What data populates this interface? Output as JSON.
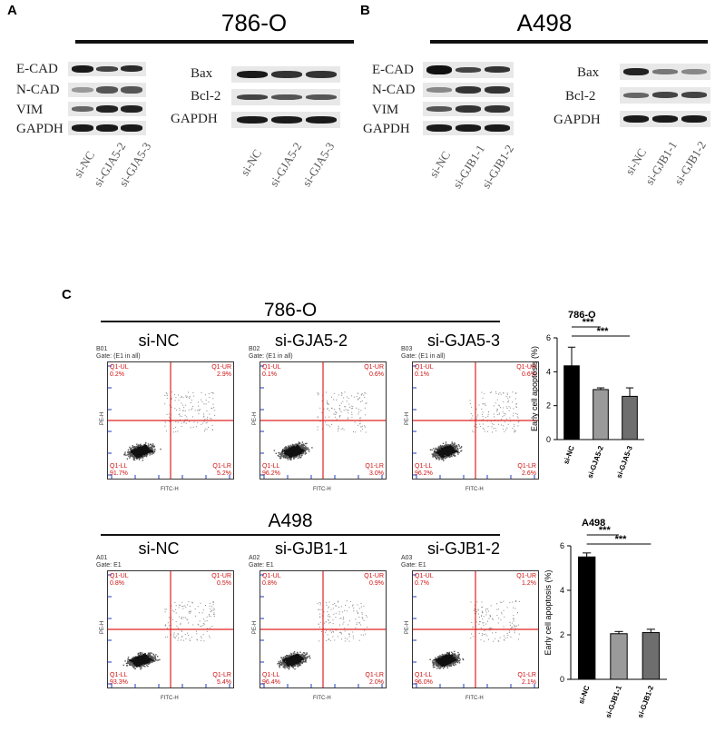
{
  "panels": {
    "A": {
      "letter": "A",
      "title": "786-O",
      "blot1": {
        "rows": [
          "E-CAD",
          "N-CAD",
          "VIM",
          "GAPDH"
        ],
        "lanes": [
          "si-NC",
          "si-GJA5-2",
          "si-GJA5-3"
        ]
      },
      "blot2": {
        "rows": [
          "Bax",
          "Bcl-2",
          "GAPDH"
        ],
        "lanes": [
          "si-NC",
          "si-GJA5-2",
          "si-GJA5-3"
        ]
      }
    },
    "B": {
      "letter": "B",
      "title": "A498",
      "blot1": {
        "rows": [
          "E-CAD",
          "N-CAD",
          "VIM",
          "GAPDH"
        ],
        "lanes": [
          "si-NC",
          "si-GJB1-1",
          "si-GJB1-2"
        ]
      },
      "blot2": {
        "rows": [
          "Bax",
          "Bcl-2",
          "GAPDH"
        ],
        "lanes": [
          "si-NC",
          "si-GJB1-1",
          "si-GJB1-2"
        ]
      }
    },
    "C": {
      "letter": "C",
      "row1": {
        "title": "786-O",
        "plots": [
          {
            "heading": "si-NC",
            "sample": "B01",
            "gate": "Gate: (E1 in all)",
            "UL": "Q1-UL",
            "UL_pct": "0.2%",
            "UR": "Q1-UR",
            "UR_pct": "2.9%",
            "LL": "Q1-LL",
            "LL_pct": "91.7%",
            "LR": "Q1-LR",
            "LR_pct": "5.2%"
          },
          {
            "heading": "si-GJA5-2",
            "sample": "B02",
            "gate": "Gate: (E1 in all)",
            "UL": "Q1-UL",
            "UL_pct": "0.1%",
            "UR": "Q1-UR",
            "UR_pct": "0.6%",
            "LL": "Q1-LL",
            "LL_pct": "96.2%",
            "LR": "Q1-LR",
            "LR_pct": "3.0%"
          },
          {
            "heading": "si-GJA5-3",
            "sample": "B03",
            "gate": "Gate: (E1 in all)",
            "UL": "Q1-UL",
            "UL_pct": "0.1%",
            "UR": "Q1-UR",
            "UR_pct": "0.6%",
            "LL": "Q1-LL",
            "LL_pct": "96.2%",
            "LR": "Q1-LR",
            "LR_pct": "2.6%"
          }
        ]
      },
      "row2": {
        "title": "A498",
        "plots": [
          {
            "heading": "si-NC",
            "sample": "A01",
            "gate": "Gate: E1",
            "UL": "Q1-UL",
            "UL_pct": "0.8%",
            "UR": "Q1-UR",
            "UR_pct": "0.5%",
            "LL": "Q1-LL",
            "LL_pct": "93.3%",
            "LR": "Q1-LR",
            "LR_pct": "5.4%"
          },
          {
            "heading": "si-GJB1-1",
            "sample": "A02",
            "gate": "Gate: E1",
            "UL": "Q1-UL",
            "UL_pct": "0.8%",
            "UR": "Q1-UR",
            "UR_pct": "0.9%",
            "LL": "Q1-LL",
            "LL_pct": "96.4%",
            "LR": "Q1-LR",
            "LR_pct": "2.0%"
          },
          {
            "heading": "si-GJB1-2",
            "sample": "A03",
            "gate": "Gate: E1",
            "UL": "Q1-UL",
            "UL_pct": "0.7%",
            "UR": "Q1-UR",
            "UR_pct": "1.2%",
            "LL": "Q1-LL",
            "LL_pct": "96.0%",
            "LR": "Q1-LR",
            "LR_pct": "2.1%"
          }
        ]
      },
      "axis": {
        "x": "FITC-H",
        "y": "PE-H"
      }
    }
  },
  "chart_data": [
    {
      "type": "bar",
      "title": "786-O",
      "ylabel": "Early cell apoptosis (%)",
      "categories": [
        "si-NC",
        "si-GJA5-2",
        "si-GJA5-3"
      ],
      "values": [
        4.35,
        2.95,
        2.55
      ],
      "errors": [
        1.1,
        0.1,
        0.5
      ],
      "ylim": [
        0,
        6
      ],
      "yticks": [
        "0",
        "2",
        "4",
        "6"
      ],
      "bar_colors": [
        "#000000",
        "#9a9a9a",
        "#6e6e6e"
      ],
      "significance": [
        "***",
        "***"
      ]
    },
    {
      "type": "bar",
      "title": "A498",
      "ylabel": "Early cell apoptosis (%)",
      "categories": [
        "si-NC",
        "si-GJB1-1",
        "si-GJB1-2"
      ],
      "values": [
        5.5,
        2.05,
        2.1
      ],
      "errors": [
        0.18,
        0.1,
        0.15
      ],
      "ylim": [
        0,
        6
      ],
      "yticks": [
        "0",
        "2",
        "4",
        "6"
      ],
      "bar_colors": [
        "#000000",
        "#9a9a9a",
        "#6e6e6e"
      ],
      "significance": [
        "***",
        "***"
      ]
    }
  ]
}
